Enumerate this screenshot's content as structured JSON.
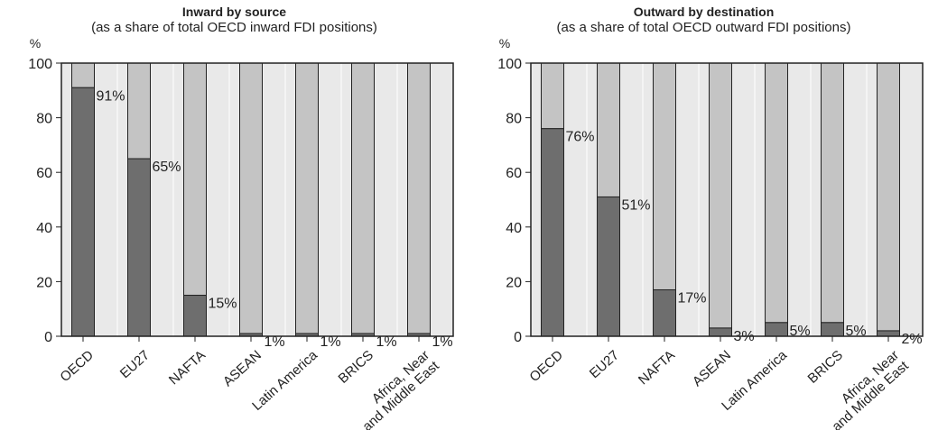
{
  "chart_data": [
    {
      "type": "bar",
      "stacked": true,
      "title": "Inward by source",
      "subtitle": "(as a share of total OECD inward FDI positions)",
      "ylabel": "%",
      "ylim": [
        0,
        100
      ],
      "yticks": [
        "0",
        "20",
        "40",
        "60",
        "80",
        "100"
      ],
      "categories": [
        "OECD",
        "EU27",
        "NAFTA",
        "ASEAN",
        "Latin America",
        "BRICS",
        "Africa, Near and Middle East"
      ],
      "values": [
        91,
        65,
        15,
        1,
        1,
        1,
        1
      ],
      "value_labels": [
        "91%",
        "65%",
        "15%",
        "1%",
        "1%",
        "1%",
        "1%"
      ],
      "remainder_to": 100,
      "colors": {
        "share": "#6e6e6e",
        "rest": "#c4c4c4",
        "plot_bg": "#e9e9e9"
      }
    },
    {
      "type": "bar",
      "stacked": true,
      "title": "Outward by destination",
      "subtitle": "(as a share of total OECD outward FDI positions)",
      "ylabel": "%",
      "ylim": [
        0,
        100
      ],
      "yticks": [
        "0",
        "20",
        "40",
        "60",
        "80",
        "100"
      ],
      "categories": [
        "OECD",
        "EU27",
        "NAFTA",
        "ASEAN",
        "Latin America",
        "BRICS",
        "Africa, Near and Middle East"
      ],
      "values": [
        76,
        51,
        17,
        3,
        5,
        5,
        2
      ],
      "value_labels": [
        "76%",
        "51%",
        "17%",
        "3%",
        "5%",
        "5%",
        "2%"
      ],
      "remainder_to": 100,
      "colors": {
        "share": "#6e6e6e",
        "rest": "#c4c4c4",
        "plot_bg": "#e9e9e9"
      }
    }
  ]
}
